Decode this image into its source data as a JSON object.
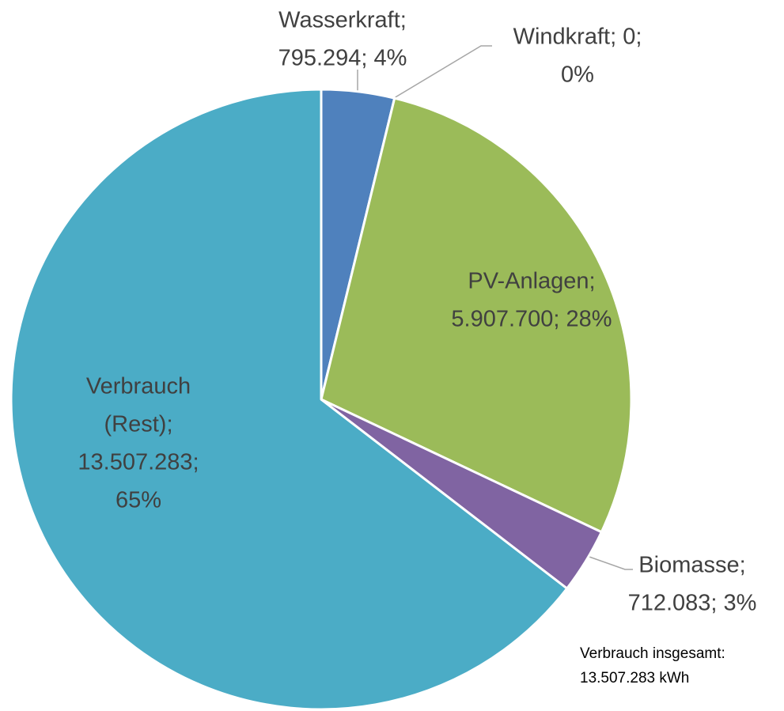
{
  "chart_data": {
    "type": "pie",
    "values": [
      795294,
      0,
      5907700,
      712083,
      13507283
    ],
    "value_labels": [
      [
        "Wasserkraft;",
        "795.294; 4%"
      ],
      [
        "Windkraft; 0;",
        "0%"
      ],
      [
        "PV-Anlagen;",
        "5.907.700; 28%"
      ],
      [
        "Biomasse;",
        "712.083; 3%"
      ],
      [
        "Verbrauch",
        "(Rest);",
        "13.507.283;",
        "65%"
      ]
    ],
    "colors": [
      "#4f81bd",
      "#c0504d",
      "#9bbb59",
      "#8064a2",
      "#4bacc6"
    ],
    "annotation": [
      "Verbrauch insgesamt:",
      "13.507.283 kWh"
    ]
  }
}
